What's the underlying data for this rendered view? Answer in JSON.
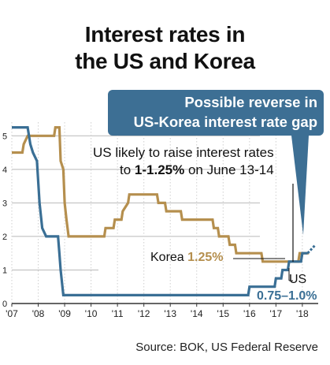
{
  "chart_data": {
    "type": "line",
    "title_lines": [
      "Interest rates in",
      "the US and Korea"
    ],
    "x_ticks": [
      "'07",
      "'08",
      "'09",
      "'10",
      "'11",
      "'12",
      "'13",
      "'14",
      "'15",
      "'16",
      "'17",
      "'18"
    ],
    "y_ticks": [
      "0",
      "1",
      "2",
      "3",
      "4",
      "5"
    ],
    "xlim": [
      2007.0,
      2018.6
    ],
    "ylim": [
      0,
      5.5
    ],
    "grid": "horizontal",
    "series": [
      {
        "name": "Korea",
        "color": "#b58f4e",
        "points": [
          [
            2007.0,
            4.5
          ],
          [
            2007.4,
            4.5
          ],
          [
            2007.45,
            4.75
          ],
          [
            2007.6,
            5.0
          ],
          [
            2008.6,
            5.0
          ],
          [
            2008.65,
            5.25
          ],
          [
            2008.8,
            5.25
          ],
          [
            2008.85,
            4.25
          ],
          [
            2008.95,
            4.0
          ],
          [
            2009.0,
            3.0
          ],
          [
            2009.07,
            2.5
          ],
          [
            2009.15,
            2.0
          ],
          [
            2010.5,
            2.0
          ],
          [
            2010.55,
            2.25
          ],
          [
            2010.85,
            2.25
          ],
          [
            2010.9,
            2.5
          ],
          [
            2011.15,
            2.5
          ],
          [
            2011.2,
            2.75
          ],
          [
            2011.4,
            3.0
          ],
          [
            2011.45,
            3.25
          ],
          [
            2012.5,
            3.25
          ],
          [
            2012.55,
            3.0
          ],
          [
            2012.8,
            3.0
          ],
          [
            2012.85,
            2.75
          ],
          [
            2013.4,
            2.75
          ],
          [
            2013.45,
            2.5
          ],
          [
            2014.6,
            2.5
          ],
          [
            2014.65,
            2.25
          ],
          [
            2014.8,
            2.25
          ],
          [
            2014.85,
            2.0
          ],
          [
            2015.2,
            2.0
          ],
          [
            2015.25,
            1.75
          ],
          [
            2015.45,
            1.75
          ],
          [
            2015.5,
            1.5
          ],
          [
            2016.45,
            1.5
          ],
          [
            2016.5,
            1.25
          ],
          [
            2017.85,
            1.25
          ],
          [
            2017.9,
            1.5
          ],
          [
            2018.25,
            1.5
          ]
        ]
      },
      {
        "name": "US",
        "color": "#3a6f95",
        "points": [
          [
            2007.0,
            5.25
          ],
          [
            2007.6,
            5.25
          ],
          [
            2007.7,
            4.75
          ],
          [
            2007.8,
            4.5
          ],
          [
            2007.95,
            4.25
          ],
          [
            2008.05,
            3.0
          ],
          [
            2008.15,
            2.25
          ],
          [
            2008.3,
            2.0
          ],
          [
            2008.75,
            2.0
          ],
          [
            2008.8,
            1.5
          ],
          [
            2008.85,
            1.0
          ],
          [
            2008.95,
            0.25
          ],
          [
            2015.95,
            0.25
          ],
          [
            2016.0,
            0.5
          ],
          [
            2016.95,
            0.5
          ],
          [
            2017.0,
            0.75
          ],
          [
            2017.2,
            0.75
          ],
          [
            2017.25,
            1.0
          ],
          [
            2017.45,
            1.0
          ],
          [
            2017.5,
            1.25
          ],
          [
            2017.95,
            1.25
          ],
          [
            2018.0,
            1.5
          ],
          [
            2018.2,
            1.5
          ]
        ],
        "projection": [
          [
            2018.2,
            1.5
          ],
          [
            2018.5,
            1.75
          ]
        ]
      }
    ],
    "callout": [
      "Possible reverse in",
      "US-Korea interest rate gap"
    ],
    "annotation_line1": "US likely to raise interest rates",
    "annotation_line2_prefix": "to ",
    "annotation_line2_bold": "1-1.25%",
    "annotation_line2_suffix": " on June 13-14",
    "korea_label": "Korea",
    "korea_value": "1.25%",
    "us_label": "US",
    "us_value": "0.75–1.0%",
    "source": "Source: BOK, US Federal Reserve"
  }
}
